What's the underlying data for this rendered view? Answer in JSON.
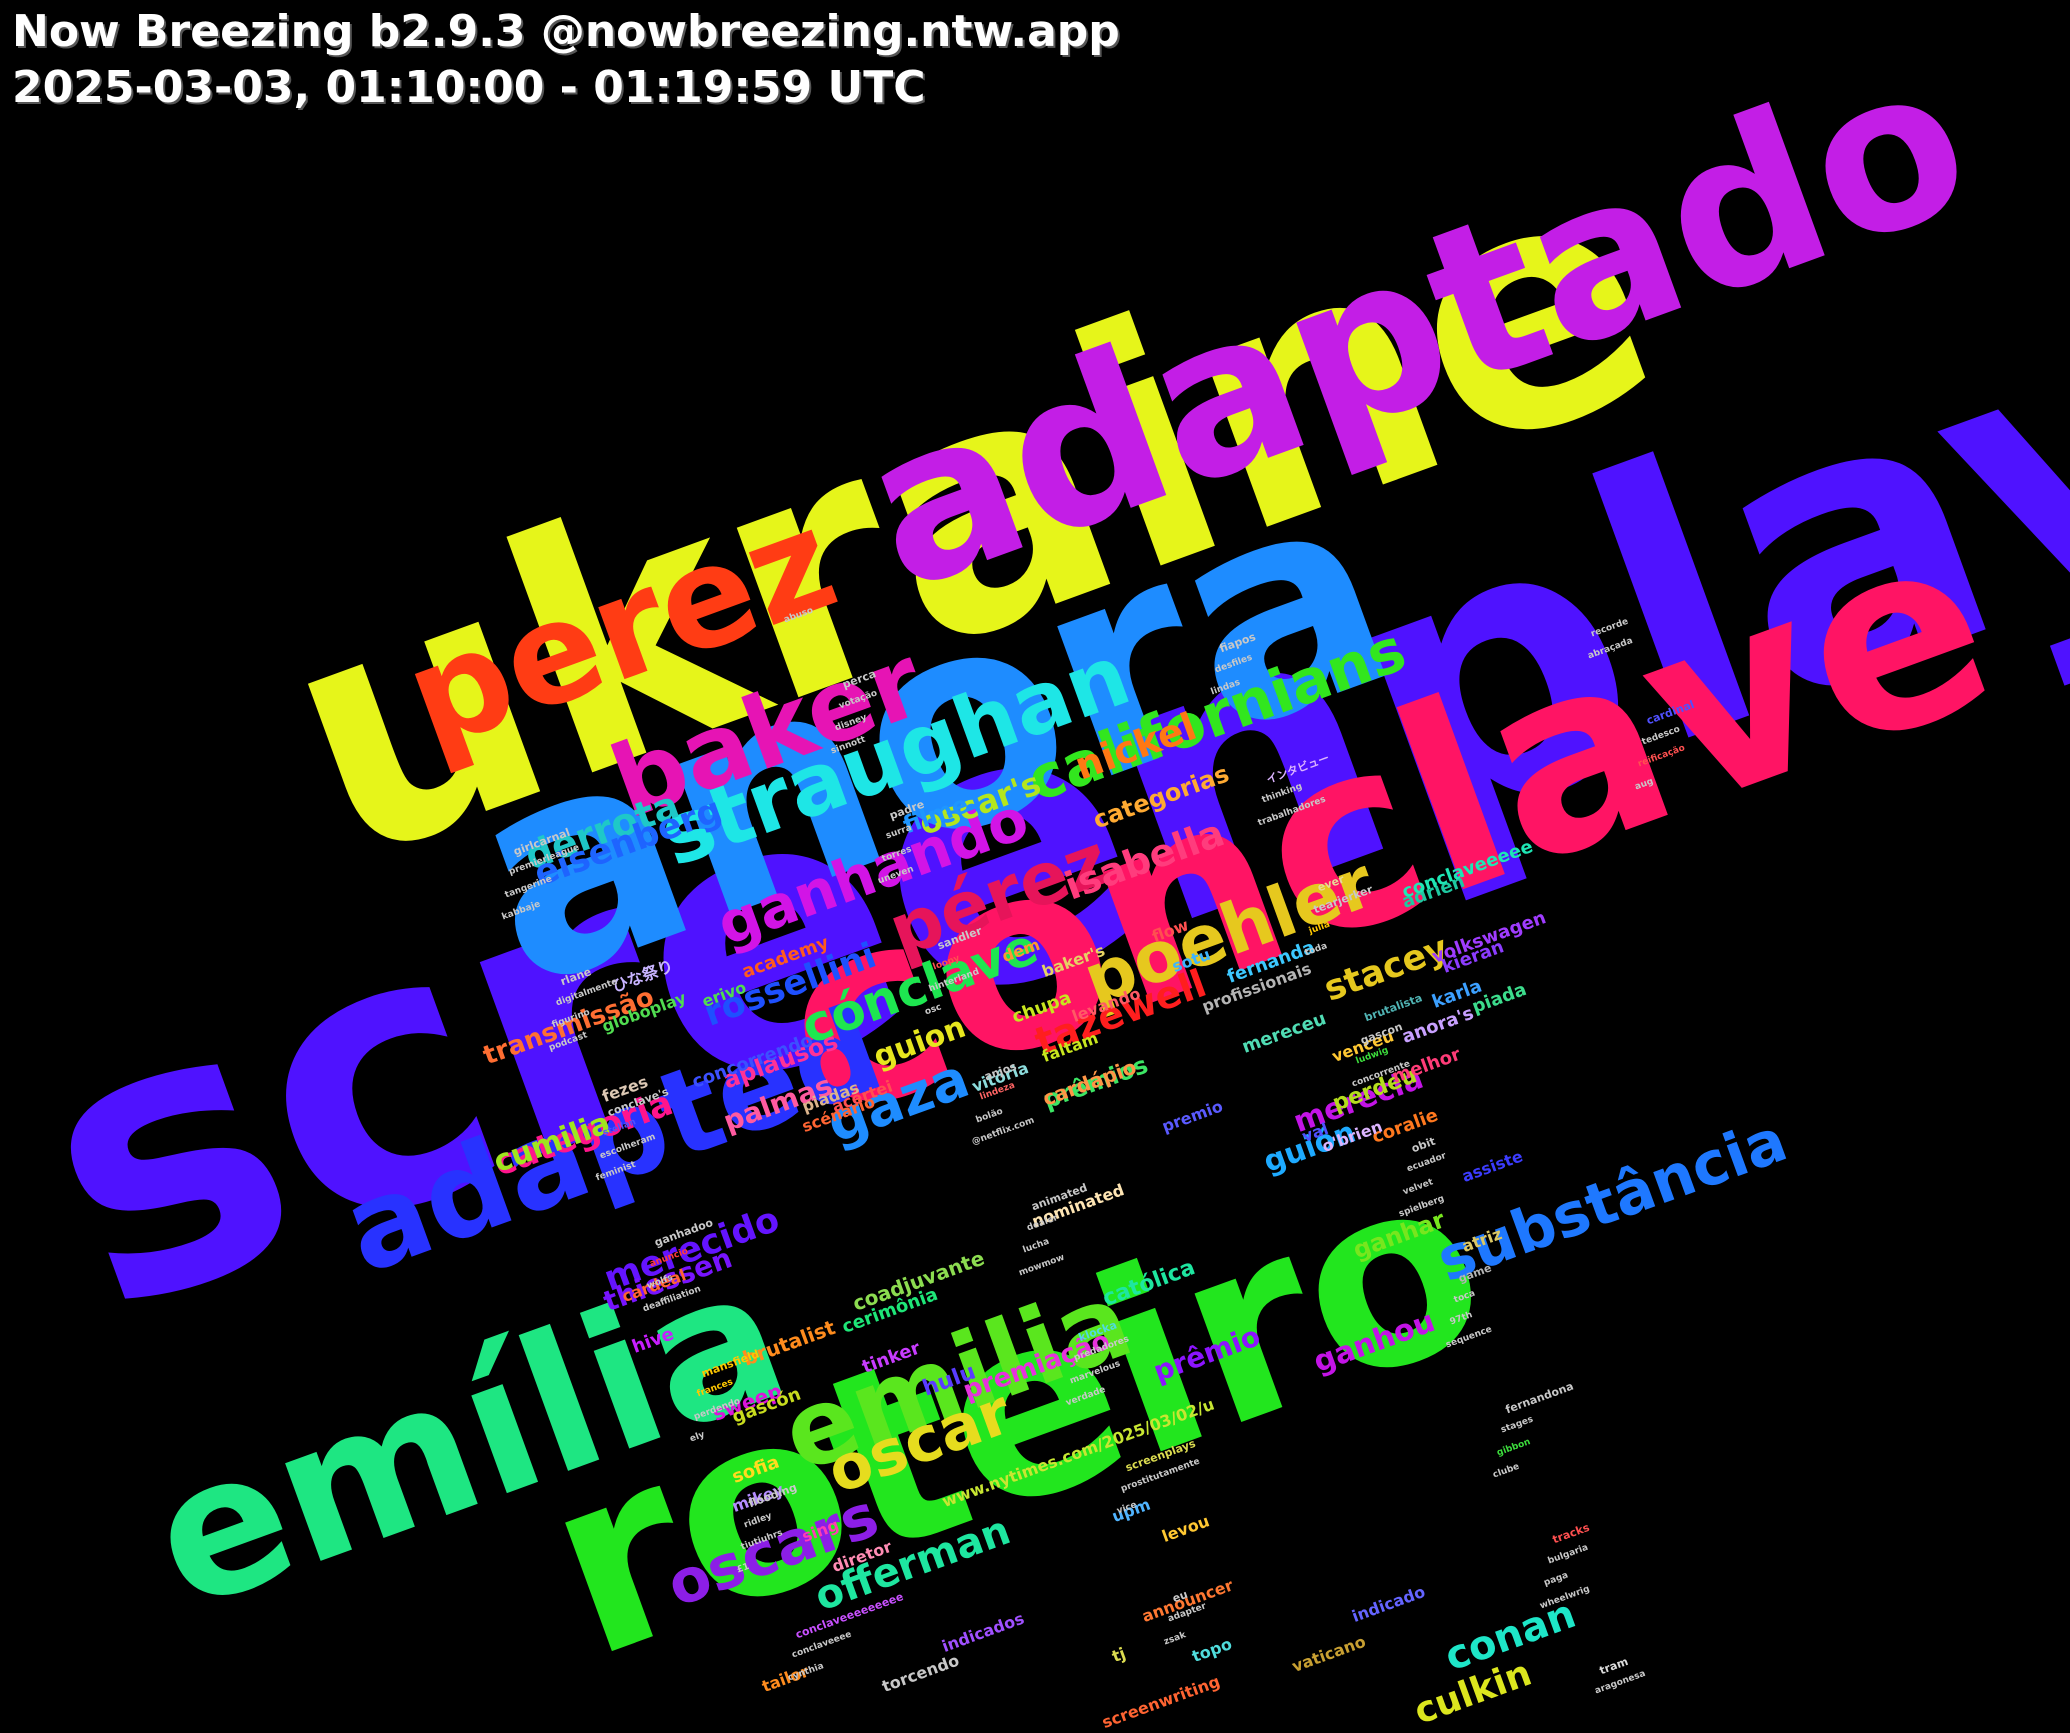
{
  "header": {
    "line1": "Now Breezing b2.9.3 @nowbreezing.ntw.app",
    "line2": "2025-03-03, 01:10:00 - 01:19:59 UTC"
  },
  "words": [
    {
      "text": "screenplay",
      "color": "#4f12ff"
    },
    {
      "text": "ukraine",
      "color": "#e6f51a"
    },
    {
      "text": "anora",
      "color": "#1e8cff"
    },
    {
      "text": "conclave",
      "color": "#ff1464"
    },
    {
      "text": "roteiro",
      "color": "#22e61e"
    },
    {
      "text": "adaptado",
      "color": "#c31ee6"
    },
    {
      "text": "emília",
      "color": "#1ee682"
    },
    {
      "text": "perez",
      "color": "#ff3c14"
    },
    {
      "text": "adapted",
      "color": "#2832ff"
    },
    {
      "text": "baker",
      "color": "#e614b4"
    },
    {
      "text": "emilia",
      "color": "#5ae61e"
    },
    {
      "text": "straughan",
      "color": "#1ee6e6"
    },
    {
      "text": "poehler",
      "color": "#e6c81e"
    },
    {
      "text": "oscars",
      "color": "#8c1ee6"
    },
    {
      "text": "californians",
      "color": "#32e61e"
    },
    {
      "text": "pérez",
      "color": "#e6145a"
    },
    {
      "text": "substância",
      "color": "#1e78ff"
    },
    {
      "text": "ganhando",
      "color": "#d214e6"
    },
    {
      "text": "oscar",
      "color": "#e6dc1e"
    },
    {
      "text": "cónclave",
      "color": "#1ee650"
    },
    {
      "text": "gaza",
      "color": "#1e8cff"
    },
    {
      "text": "isabella",
      "color": "#ff3c7d"
    },
    {
      "text": "nickel",
      "color": "#ff7814"
    },
    {
      "text": "offerman",
      "color": "#1ee6a0"
    },
    {
      "text": "derrota",
      "color": "#1ec8c8"
    },
    {
      "text": "eisenberg",
      "color": "#1e64ff"
    },
    {
      "text": "oscar's",
      "color": "#b4e61e"
    },
    {
      "text": "tazewell",
      "color": "#ff1e1e"
    },
    {
      "text": "rossellini",
      "color": "#1e50ff"
    },
    {
      "text": "conan",
      "color": "#1ee6c8"
    },
    {
      "text": "categoria",
      "color": "#ff148c"
    },
    {
      "text": "culkin",
      "color": "#dce61e"
    },
    {
      "text": "guión",
      "color": "#1eaaff"
    },
    {
      "text": "stacey",
      "color": "#e6c81e"
    },
    {
      "text": "merecido",
      "color": "#6414ff"
    },
    {
      "text": "cumilia",
      "color": "#a0e61e"
    },
    {
      "text": "guion",
      "color": "#e6e61e"
    },
    {
      "text": "merecia",
      "color": "#c314e6"
    },
    {
      "text": "prêmio",
      "color": "#8c14ff"
    },
    {
      "text": "ganhou",
      "color": "#c314e6"
    },
    {
      "text": "thiessen",
      "color": "#7814ff"
    },
    {
      "text": "palmas",
      "color": "#ff5aa0"
    },
    {
      "text": "transmissão",
      "color": "#ff6e32"
    },
    {
      "text": "filme",
      "color": "#1e96ff"
    },
    {
      "text": "categorias",
      "color": "#ffaa32"
    },
    {
      "text": "premiação",
      "color": "#e632dc"
    },
    {
      "text": "aplausos",
      "color": "#ff3296"
    },
    {
      "text": "prêmios",
      "color": "#3ce664"
    },
    {
      "text": "ganhar",
      "color": "#78e61e"
    },
    {
      "text": "perdeu",
      "color": "#b4dc1e"
    },
    {
      "text": "católica",
      "color": "#1ee6a0"
    },
    {
      "text": "hulu",
      "color": "#5a3cff"
    },
    {
      "text": "cardápio",
      "color": "#ff9646"
    },
    {
      "text": "coadjuvante",
      "color": "#8cdc50"
    },
    {
      "text": "brutalist",
      "color": "#ff8c1e"
    },
    {
      "text": "sweep",
      "color": "#dc14dc"
    },
    {
      "text": "tinker",
      "color": "#c83cff"
    },
    {
      "text": "chupa",
      "color": "#c8e61e"
    },
    {
      "text": "hive",
      "color": "#c81eff"
    },
    {
      "text": "cerimônia",
      "color": "#1ee678"
    },
    {
      "text": "sofia",
      "color": "#ffdc1e"
    },
    {
      "text": "academy",
      "color": "#ff5a1e"
    },
    {
      "text": "gascón",
      "color": "#c8dc1e"
    },
    {
      "text": "concorrendo",
      "color": "#3c50ff"
    },
    {
      "text": "fernanda",
      "color": "#3cc8ff"
    },
    {
      "text": "kieran",
      "color": "#8c3cff"
    },
    {
      "text": "adrien",
      "color": "#1ec8a0"
    },
    {
      "text": "conclaveeeee",
      "color": "#1ee6b4"
    },
    {
      "text": "volkswagen",
      "color": "#a03cff"
    },
    {
      "text": "karla",
      "color": "#3ca0ff"
    },
    {
      "text": "piada",
      "color": "#3cdc8c"
    },
    {
      "text": "anora's",
      "color": "#c8a0ff"
    },
    {
      "text": "mereceu",
      "color": "#50dcb4"
    },
    {
      "text": "melhor",
      "color": "#ff3c78"
    },
    {
      "text": "coralie",
      "color": "#ff781e"
    },
    {
      "text": "assiste",
      "color": "#3c3cff"
    },
    {
      "text": "atriz",
      "color": "#dcc864"
    },
    {
      "text": "o'brien",
      "color": "#dcb4ff"
    },
    {
      "text": "val",
      "color": "#5050ff"
    },
    {
      "text": "premio",
      "color": "#5a5aff"
    },
    {
      "text": "faltam",
      "color": "#c8e61e"
    },
    {
      "text": "levando",
      "color": "#ff5a64"
    },
    {
      "text": "baker's",
      "color": "#e6d264"
    },
    {
      "text": "dem",
      "color": "#ff9632"
    },
    {
      "text": "nominated",
      "color": "#ffe6b4"
    },
    {
      "text": "cardeal",
      "color": "#ff6432"
    },
    {
      "text": "mikey",
      "color": "#b48cff"
    },
    {
      "text": "sing",
      "color": "#ff3cb4"
    },
    {
      "text": "diretor",
      "color": "#ff8cb4"
    },
    {
      "text": "upm",
      "color": "#50b4ff"
    },
    {
      "text": "levou",
      "color": "#ffc832"
    },
    {
      "text": "www.nytimes.com/2025/03/02/u",
      "color": "#c8e632"
    },
    {
      "text": "announcer",
      "color": "#ff7832"
    },
    {
      "text": "indicados",
      "color": "#a050ff"
    },
    {
      "text": "indicado",
      "color": "#6464ff"
    },
    {
      "text": "topo",
      "color": "#50dcdc"
    },
    {
      "text": "tj",
      "color": "#dcdc50"
    },
    {
      "text": "screenwriting",
      "color": "#ff6432"
    },
    {
      "text": "vaticano",
      "color": "#c8a032"
    },
    {
      "text": "torcendo",
      "color": "#c8c8c8"
    },
    {
      "text": "tailor",
      "color": "#ff8c1e"
    },
    {
      "text": "globoplay",
      "color": "#50dc50"
    },
    {
      "text": "fezes",
      "color": "#dcc8b4"
    },
    {
      "text": "piadas",
      "color": "#dcb48c"
    },
    {
      "text": "scénario",
      "color": "#ff6432"
    },
    {
      "text": "acertei",
      "color": "#ff5050"
    },
    {
      "text": "erivo",
      "color": "#50dc50"
    },
    {
      "text": "ひな祭り",
      "color": "#c8b4ff"
    },
    {
      "text": "vitória",
      "color": "#8cdcdc"
    },
    {
      "text": "profissionais",
      "color": "#b4b4b4"
    },
    {
      "text": "venceu",
      "color": "#ffc832"
    },
    {
      "text": "sotu",
      "color": "#3cb4ff"
    },
    {
      "text": "flow",
      "color": "#ff5050"
    },
    {
      "text": "ever",
      "color": "#e6dc96"
    },
    {
      "text": "brutalista",
      "color": "#50b4b4"
    },
    {
      "text": "obit",
      "color": "#c8c8c8"
    },
    {
      "text": "game",
      "color": "#b4b4b4"
    },
    {
      "text": "fernandona",
      "color": "#c8c8c8"
    },
    {
      "text": "tracks",
      "color": "#ff5050"
    },
    {
      "text": "tram",
      "color": "#dcdcdc"
    },
    {
      "text": "cardinal",
      "color": "#5050ff"
    },
    {
      "text": "girlcarnal",
      "color": "#c8c8c8"
    },
    {
      "text": "rlane",
      "color": "#c8c8c8"
    },
    {
      "text": "conclave's",
      "color": "#c8c8c8"
    },
    {
      "text": "ganhadoo",
      "color": "#c8c8c8"
    },
    {
      "text": "mansfield",
      "color": "#ffc800"
    },
    {
      "text": "flooding",
      "color": "#c8c8c8"
    },
    {
      "text": "conclaveeeeeeeee",
      "color": "#c850ff"
    },
    {
      "text": "perca",
      "color": "#c8c8c8"
    },
    {
      "text": "padre",
      "color": "#c8c8c8"
    },
    {
      "text": "sandler",
      "color": "#c8c8c8"
    },
    {
      "text": "anjos",
      "color": "#c8c8c8"
    },
    {
      "text": "animated",
      "color": "#c8c8c8"
    },
    {
      "text": "klocka",
      "color": "#50dcdc"
    },
    {
      "text": "screenplays",
      "color": "#dcdc50"
    },
    {
      "text": "eu",
      "color": "#c8c8c8"
    },
    {
      "text": "fiapos",
      "color": "#c8c8c8"
    },
    {
      "text": "インタビュー",
      "color": "#dcb4ff"
    },
    {
      "text": "tearjerker",
      "color": "#c8c8c8"
    },
    {
      "text": "gascon",
      "color": "#c8c8c8"
    },
    {
      "text": "ecuador",
      "color": "#c8c8c8"
    },
    {
      "text": "toca",
      "color": "#c8c8c8"
    },
    {
      "text": "stages",
      "color": "#c8c8c8"
    },
    {
      "text": "bulgaria",
      "color": "#c8c8c8"
    },
    {
      "text": "aragonesa",
      "color": "#c8c8c8"
    },
    {
      "text": "tedesco",
      "color": "#c8c8c8"
    },
    {
      "text": "premierleague",
      "color": "#c8c8c8"
    },
    {
      "text": "digitalmente",
      "color": "#c8c8c8"
    },
    {
      "text": "stellan",
      "color": "#5050ff"
    },
    {
      "text": "anuncio",
      "color": "#ff3c3c"
    },
    {
      "text": "frances",
      "color": "#ffc800"
    },
    {
      "text": "ridley",
      "color": "#c8c8c8"
    },
    {
      "text": "conclaveeee",
      "color": "#c8c8c8"
    },
    {
      "text": "votação",
      "color": "#c8c8c8"
    },
    {
      "text": "surra",
      "color": "#c8c8c8"
    },
    {
      "text": "loopy",
      "color": "#ff5050"
    },
    {
      "text": "lindeza",
      "color": "#ff6464"
    },
    {
      "text": "dealer",
      "color": "#c8c8c8"
    },
    {
      "text": "predadores",
      "color": "#c8c8c8"
    },
    {
      "text": "prostitutamente",
      "color": "#c8c8c8"
    },
    {
      "text": "adapter",
      "color": "#c8c8c8"
    },
    {
      "text": "desfiles",
      "color": "#c8c8c8"
    },
    {
      "text": "thinking",
      "color": "#c8c8c8"
    },
    {
      "text": "julia",
      "color": "#ffc800"
    },
    {
      "text": "ludwig",
      "color": "#3cdc3c"
    },
    {
      "text": "velvet",
      "color": "#c8c8c8"
    },
    {
      "text": "97th",
      "color": "#c8c8c8"
    },
    {
      "text": "gibbon",
      "color": "#3cdc3c"
    },
    {
      "text": "paga",
      "color": "#c8c8c8"
    },
    {
      "text": "recorde",
      "color": "#c8c8c8"
    },
    {
      "text": "reificação",
      "color": "#ff5050"
    },
    {
      "text": "tangerine",
      "color": "#c8c8c8"
    },
    {
      "text": "figurino",
      "color": "#c8c8c8"
    },
    {
      "text": "escolheram",
      "color": "#c8c8c8"
    },
    {
      "text": "wolfs",
      "color": "#c8c8c8"
    },
    {
      "text": "perdendo",
      "color": "#c8c8c8"
    },
    {
      "text": "tiutiuhrs",
      "color": "#c8c8c8"
    },
    {
      "text": "cynthia",
      "color": "#c8c8c8"
    },
    {
      "text": "disney",
      "color": "#c8c8c8"
    },
    {
      "text": "torres",
      "color": "#c8c8c8"
    },
    {
      "text": "hinterland",
      "color": "#c8c8c8"
    },
    {
      "text": "bolão",
      "color": "#c8c8c8"
    },
    {
      "text": "lucha",
      "color": "#c8c8c8"
    },
    {
      "text": "marvelous",
      "color": "#c8c8c8"
    },
    {
      "text": "vice",
      "color": "#c8c8c8"
    },
    {
      "text": "zsak",
      "color": "#c8c8c8"
    },
    {
      "text": "lindas",
      "color": "#c8c8c8"
    },
    {
      "text": "trabalhadores",
      "color": "#c8c8c8"
    },
    {
      "text": "toda",
      "color": "#c8c8c8"
    },
    {
      "text": "concorrente",
      "color": "#c8c8c8"
    },
    {
      "text": "spielberg",
      "color": "#c8c8c8"
    },
    {
      "text": "sequence",
      "color": "#c8c8c8"
    },
    {
      "text": "clube",
      "color": "#c8c8c8"
    },
    {
      "text": "wheelwrig",
      "color": "#c8c8c8"
    },
    {
      "text": "abraçada",
      "color": "#c8c8c8"
    },
    {
      "text": "aug",
      "color": "#c8c8c8"
    },
    {
      "text": "kabbaje",
      "color": "#c8c8c8"
    },
    {
      "text": "podcast",
      "color": "#c8c8c8"
    },
    {
      "text": "feminist",
      "color": "#c8c8c8"
    },
    {
      "text": "deaffiliation",
      "color": "#c8c8c8"
    },
    {
      "text": "ely",
      "color": "#c8c8c8"
    },
    {
      "text": "£1",
      "color": "#c8c8c8"
    },
    {
      "text": "abuso",
      "color": "#c8c8c8"
    },
    {
      "text": "sinnott",
      "color": "#c8c8c8"
    },
    {
      "text": "uneven",
      "color": "#c8c8c8"
    },
    {
      "text": "osc",
      "color": "#c8c8c8"
    },
    {
      "text": "@netflix.com",
      "color": "#c8c8c8"
    },
    {
      "text": "mowmow",
      "color": "#c8c8c8"
    },
    {
      "text": "verdade",
      "color": "#c8c8c8"
    }
  ]
}
